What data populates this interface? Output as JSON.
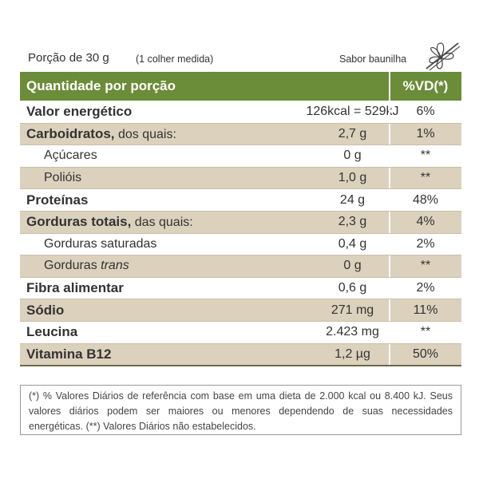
{
  "header": {
    "serving": "Porção de 30 g",
    "serving_note": "(1 colher medida)",
    "flavor": "Sabor baunilha"
  },
  "table": {
    "columns": [
      "Quantidade por porção",
      "%VD(*)"
    ],
    "rows": [
      {
        "label": "Valor energético",
        "value": "126kcal = 529kJ",
        "vd": "6%"
      },
      {
        "label": "Carboidratos,",
        "note": "dos quais:",
        "value": "2,7 g",
        "vd": "1%"
      },
      {
        "label": "Açúcares",
        "value": "0 g",
        "vd": "**"
      },
      {
        "label": "Polióis",
        "value": "1,0 g",
        "vd": "**"
      },
      {
        "label": "Proteínas",
        "value": "24 g",
        "vd": "48%"
      },
      {
        "label": "Gorduras totais,",
        "note": "das quais:",
        "value": "2,3 g",
        "vd": "4%"
      },
      {
        "label": "Gorduras saturadas",
        "value": "0,4 g",
        "vd": "2%"
      },
      {
        "label": "Gorduras",
        "emphasis": "trans",
        "value": "0 g",
        "vd": "**"
      },
      {
        "label": "Fibra alimentar",
        "value": "0,6 g",
        "vd": "2%"
      },
      {
        "label": "Sódio",
        "value": "271 mg",
        "vd": "11%"
      },
      {
        "label": "Leucina",
        "value": "2.423 mg",
        "vd": "**"
      },
      {
        "label": "Vitamina B12",
        "value": "1,2 µg",
        "vd": "50%"
      }
    ]
  },
  "footnote": "(*) % Valores Diários de referência com base em uma dieta de 2.000 kcal ou 8.400 kJ. Seus valores diários podem ser maiores ou menores dependendo de suas necessidades energéticas. (**) Valores Diários não estabelecidos."
}
